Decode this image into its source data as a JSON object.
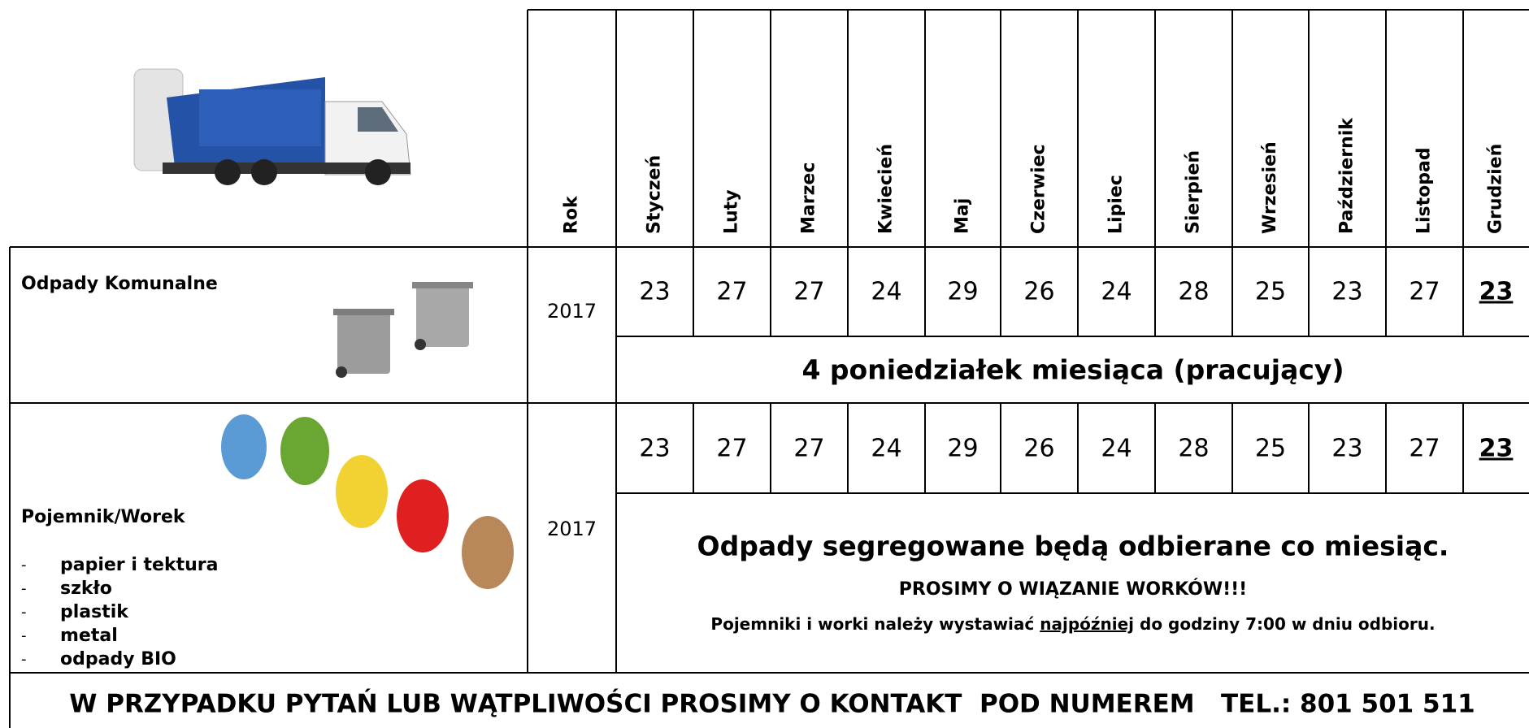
{
  "header": {
    "year_label": "Rok",
    "months": [
      "Styczeń",
      "Luty",
      "Marzec",
      "Kwiecień",
      "Maj",
      "Czerwiec",
      "Lipiec",
      "Sierpień",
      "Wrzesień",
      "Październik",
      "Listopad",
      "Grudzień"
    ]
  },
  "rows": [
    {
      "title": "Odpady Komunalne",
      "year": 2017,
      "dates": [
        23,
        27,
        27,
        24,
        29,
        26,
        24,
        28,
        25,
        23,
        27,
        23
      ],
      "note": "4 poniedziałek miesiąca (pracujący)"
    },
    {
      "title": "Pojemnik/Worek",
      "items": [
        "papier i tektura",
        "szkło",
        "plastik",
        "metal",
        "odpady BIO"
      ],
      "year": 2017,
      "dates": [
        23,
        27,
        27,
        24,
        29,
        26,
        24,
        28,
        25,
        23,
        27,
        23
      ],
      "note": "Odpady segregowane będą odbierane co miesiąc.",
      "note2": "PROSIMY O WIĄZANIE WORKÓW!!!",
      "note3_parts": [
        "Pojemniki i worki należy wystawiać ",
        "najpóźniej",
        " do godziny 7:00 w dniu odbioru."
      ]
    }
  ],
  "footer": "W PRZYPADKU PYTAŃ LUB WĄTPLIWOŚCI PROSIMY O KONTAKT  POD NUMEREM   TEL.: 801 501 511"
}
